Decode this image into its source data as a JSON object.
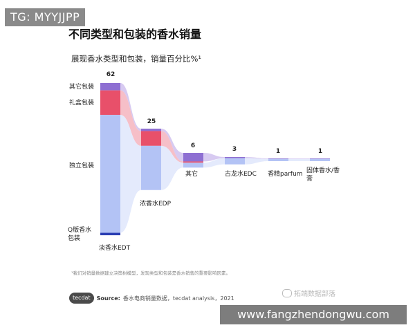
{
  "watermarks": {
    "top": "TG: MYYJJPP",
    "bottom": "www.fangzhendongwu.com",
    "wechat": "拓端数据部落"
  },
  "header": {
    "title": "不同类型和包装的香水销量",
    "subtitle": "展现香水类型和包装，销量百分比%¹"
  },
  "footer": {
    "footnote": "¹我们对销量数据建立决策树模型，发现类型和包装是香水销售的重要影响因素。",
    "logo": "tecdat",
    "source_label": "Source:",
    "source_text": "香水电商销量数据，tecdat analysis，2021"
  },
  "colors": {
    "blue": "#b3c3f5",
    "blue_flow": "#dbe3fb",
    "red": "#e8506a",
    "red_flow": "#f3a9b6",
    "purple": "#8e6fd2",
    "purple_flow": "#c9b8ec",
    "dark_blue": "#2b3fb3"
  },
  "chart_data": {
    "type": "sankey",
    "title": "不同类型和包装的香水销量",
    "subtitle": "展现香水类型和包装，销量百分比%¹",
    "columns": [
      {
        "label": "淡香水EDT",
        "total": 62,
        "segments": [
          {
            "name": "其它包装",
            "value": 3,
            "color": "purple"
          },
          {
            "name": "礼盒包装",
            "value": 10,
            "color": "red"
          },
          {
            "name": "独立包装",
            "value": 48,
            "color": "blue"
          },
          {
            "name": "Q版香水包装",
            "value": 1,
            "color": "dark_blue"
          }
        ]
      },
      {
        "label": "浓香水EDP",
        "total": 25,
        "segments": [
          {
            "name": "其它包装",
            "value": 1,
            "color": "purple"
          },
          {
            "name": "礼盒包装",
            "value": 6,
            "color": "red"
          },
          {
            "name": "独立包装",
            "value": 18,
            "color": "blue"
          }
        ]
      },
      {
        "label": "其它",
        "total": 6,
        "segments": [
          {
            "name": "其它包装",
            "value": 3.5,
            "color": "purple"
          },
          {
            "name": "礼盒包装",
            "value": 0.5,
            "color": "red"
          },
          {
            "name": "独立包装",
            "value": 2,
            "color": "blue"
          }
        ]
      },
      {
        "label": "古龙水EDC",
        "total": 3,
        "segments": [
          {
            "name": "其它包装",
            "value": 0.5,
            "color": "purple"
          },
          {
            "name": "独立包装",
            "value": 2.5,
            "color": "blue"
          }
        ]
      },
      {
        "label": "香精parfum",
        "total": 1,
        "segments": [
          {
            "name": "其它包装",
            "value": 0.2,
            "color": "purple"
          },
          {
            "name": "独立包装",
            "value": 0.8,
            "color": "blue"
          }
        ]
      },
      {
        "label": "固体香水/香膏",
        "total": 1,
        "segments": [
          {
            "name": "其它包装",
            "value": 0.2,
            "color": "purple"
          },
          {
            "name": "独立包装",
            "value": 0.8,
            "color": "blue"
          }
        ]
      }
    ],
    "packaging_labels": [
      "其它包装",
      "礼盒包装",
      "独立包装",
      "Q版香水包装"
    ],
    "unit": "%"
  }
}
